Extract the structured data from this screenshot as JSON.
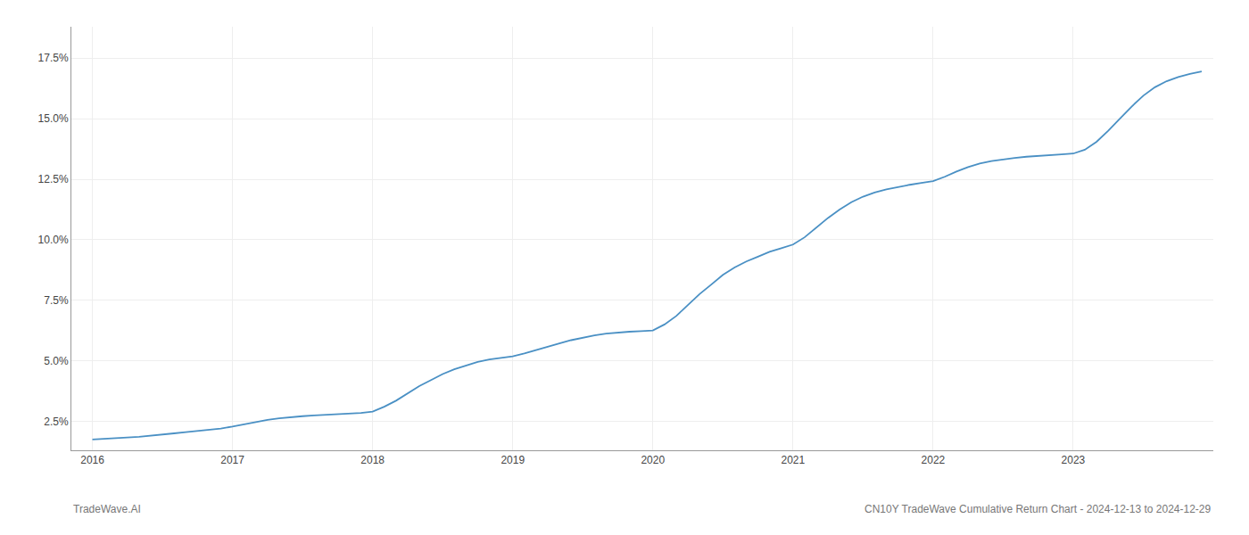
{
  "chart_data": {
    "type": "line",
    "x": [
      2016.0,
      2016.083,
      2016.167,
      2016.25,
      2016.333,
      2016.417,
      2016.5,
      2016.583,
      2016.667,
      2016.75,
      2016.833,
      2016.917,
      2017.0,
      2017.083,
      2017.167,
      2017.25,
      2017.333,
      2017.417,
      2017.5,
      2017.583,
      2017.667,
      2017.75,
      2017.833,
      2017.917,
      2018.0,
      2018.083,
      2018.167,
      2018.25,
      2018.333,
      2018.417,
      2018.5,
      2018.583,
      2018.667,
      2018.75,
      2018.833,
      2018.917,
      2019.0,
      2019.083,
      2019.167,
      2019.25,
      2019.333,
      2019.417,
      2019.5,
      2019.583,
      2019.667,
      2019.75,
      2019.833,
      2019.917,
      2020.0,
      2020.083,
      2020.167,
      2020.25,
      2020.333,
      2020.417,
      2020.5,
      2020.583,
      2020.667,
      2020.75,
      2020.833,
      2020.917,
      2021.0,
      2021.083,
      2021.167,
      2021.25,
      2021.333,
      2021.417,
      2021.5,
      2021.583,
      2021.667,
      2021.75,
      2021.833,
      2021.917,
      2022.0,
      2022.083,
      2022.167,
      2022.25,
      2022.333,
      2022.417,
      2022.5,
      2022.583,
      2022.667,
      2022.75,
      2022.833,
      2022.917,
      2023.0,
      2023.083,
      2023.167,
      2023.25,
      2023.333,
      2023.417,
      2023.5,
      2023.583,
      2023.667,
      2023.75,
      2023.833,
      2023.917
    ],
    "values": [
      1.75,
      1.77,
      1.8,
      1.83,
      1.86,
      1.9,
      1.95,
      2.0,
      2.05,
      2.1,
      2.15,
      2.2,
      2.28,
      2.38,
      2.48,
      2.56,
      2.62,
      2.67,
      2.71,
      2.74,
      2.77,
      2.8,
      2.82,
      2.84,
      2.9,
      3.1,
      3.35,
      3.65,
      3.95,
      4.2,
      4.45,
      4.65,
      4.8,
      4.95,
      5.05,
      5.12,
      5.18,
      5.3,
      5.45,
      5.6,
      5.72,
      5.85,
      5.95,
      6.05,
      6.12,
      6.17,
      6.2,
      6.22,
      6.25,
      6.5,
      6.85,
      7.3,
      7.75,
      8.15,
      8.55,
      8.85,
      9.1,
      9.3,
      9.5,
      9.65,
      9.8,
      10.1,
      10.5,
      10.9,
      11.25,
      11.55,
      11.78,
      11.95,
      12.08,
      12.18,
      12.27,
      12.35,
      12.42,
      12.6,
      12.82,
      13.0,
      13.15,
      13.25,
      13.32,
      13.38,
      13.43,
      13.47,
      13.5,
      13.53,
      13.56,
      13.72,
      14.05,
      14.5,
      15.0,
      15.5,
      15.95,
      16.3,
      16.55,
      16.72,
      16.85,
      16.95
    ],
    "color": "#4a90c4",
    "xlim": [
      2015.85,
      2024.0
    ],
    "xticks": [
      2016,
      2017,
      2018,
      2019,
      2020,
      2021,
      2022,
      2023
    ],
    "ylim": [
      1.3,
      18.8
    ],
    "yticks": [
      {
        "value": 2.5,
        "label": "2.5%"
      },
      {
        "value": 5.0,
        "label": "5.0%"
      },
      {
        "value": 7.5,
        "label": "7.5%"
      },
      {
        "value": 10.0,
        "label": "10.0%"
      },
      {
        "value": 12.5,
        "label": "12.5%"
      },
      {
        "value": 15.0,
        "label": "15.0%"
      },
      {
        "value": 17.5,
        "label": "17.5%"
      }
    ],
    "grid": true,
    "annotations": [
      "TradeWave.AI",
      "CN10Y TradeWave Cumulative Return Chart - 2024-12-13 to 2024-12-29"
    ]
  }
}
